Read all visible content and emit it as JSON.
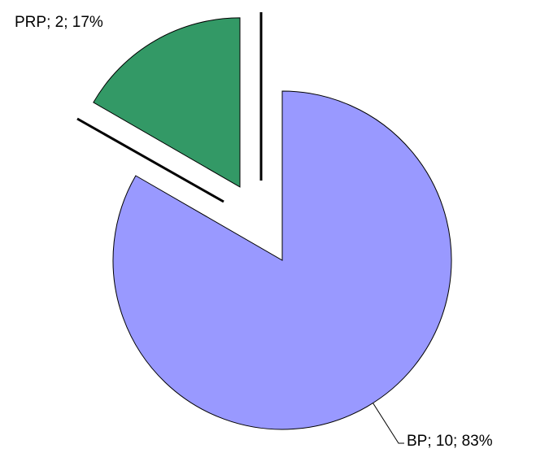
{
  "chart_data": {
    "type": "pie",
    "categories": [
      "PRP",
      "BP"
    ],
    "values": [
      2,
      10
    ],
    "value_labels": [
      "PRP; 2; 17%",
      "BP; 10; 83%"
    ],
    "colors": [
      "#339966",
      "#9999ff"
    ],
    "start_angle": 300
  }
}
